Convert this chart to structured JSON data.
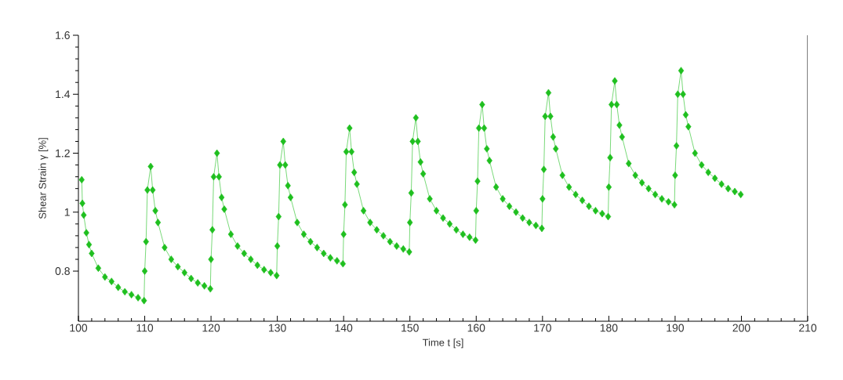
{
  "chart_data": {
    "type": "line",
    "xlabel": "Time t  [s]",
    "ylabel": "Shear Strain γ  [%]",
    "xlim": [
      100,
      210
    ],
    "ylim": [
      0.63,
      1.6
    ],
    "xticks": [
      100,
      110,
      120,
      130,
      140,
      150,
      160,
      170,
      180,
      190,
      200,
      210
    ],
    "yticks": [
      0.8,
      1,
      1.2,
      1.4,
      1.6
    ],
    "marker": "diamond",
    "line_style": "solid",
    "grid": false,
    "series": [
      {
        "color": "#1fbf1f",
        "x": [
          100.5,
          100.6,
          100.8,
          101.2,
          101.6,
          102,
          103,
          104,
          105,
          106,
          107,
          108,
          109,
          109.9,
          110,
          110.2,
          110.4,
          110.9,
          111.2,
          111.6,
          112,
          113,
          114,
          115,
          116,
          117,
          118,
          119,
          119.9,
          120,
          120.2,
          120.4,
          120.9,
          121.2,
          121.6,
          122,
          123,
          124,
          125,
          126,
          127,
          128,
          129,
          129.9,
          130,
          130.2,
          130.4,
          130.9,
          131.2,
          131.6,
          132,
          133,
          134,
          135,
          136,
          137,
          138,
          139,
          139.9,
          140,
          140.2,
          140.4,
          140.9,
          141.2,
          141.6,
          142,
          143,
          144,
          145,
          146,
          147,
          148,
          149,
          149.9,
          150,
          150.2,
          150.4,
          150.9,
          151.2,
          151.6,
          152,
          153,
          154,
          155,
          156,
          157,
          158,
          159,
          159.9,
          160,
          160.2,
          160.4,
          160.9,
          161.2,
          161.6,
          162,
          163,
          164,
          165,
          166,
          167,
          168,
          169,
          169.9,
          170,
          170.2,
          170.4,
          170.9,
          171.2,
          171.6,
          172,
          173,
          174,
          175,
          176,
          177,
          178,
          179,
          179.9,
          180,
          180.2,
          180.4,
          180.9,
          181.2,
          181.6,
          182,
          183,
          184,
          185,
          186,
          187,
          188,
          189,
          189.9,
          190,
          190.2,
          190.4,
          190.9,
          191.2,
          191.6,
          192,
          193,
          194,
          195,
          196,
          197,
          198,
          199,
          199.9
        ],
        "values": [
          1.11,
          1.03,
          0.99,
          0.93,
          0.89,
          0.86,
          0.81,
          0.78,
          0.765,
          0.745,
          0.73,
          0.72,
          0.71,
          0.7,
          0.8,
          0.9,
          1.075,
          1.155,
          1.075,
          1.005,
          0.965,
          0.88,
          0.84,
          0.815,
          0.795,
          0.775,
          0.76,
          0.75,
          0.74,
          0.84,
          0.94,
          1.12,
          1.2,
          1.12,
          1.05,
          1.01,
          0.925,
          0.885,
          0.86,
          0.84,
          0.82,
          0.805,
          0.795,
          0.785,
          0.885,
          0.985,
          1.16,
          1.24,
          1.16,
          1.09,
          1.05,
          0.965,
          0.925,
          0.9,
          0.88,
          0.86,
          0.845,
          0.835,
          0.825,
          0.925,
          1.025,
          1.205,
          1.285,
          1.205,
          1.135,
          1.095,
          1.005,
          0.965,
          0.94,
          0.92,
          0.9,
          0.885,
          0.875,
          0.865,
          0.965,
          1.065,
          1.24,
          1.32,
          1.24,
          1.17,
          1.13,
          1.045,
          1.005,
          0.98,
          0.96,
          0.94,
          0.925,
          0.915,
          0.905,
          1.005,
          1.105,
          1.285,
          1.365,
          1.285,
          1.215,
          1.175,
          1.085,
          1.045,
          1.02,
          1.0,
          0.98,
          0.965,
          0.955,
          0.945,
          1.045,
          1.145,
          1.325,
          1.405,
          1.325,
          1.255,
          1.215,
          1.125,
          1.085,
          1.06,
          1.04,
          1.02,
          1.005,
          0.995,
          0.985,
          1.085,
          1.185,
          1.365,
          1.445,
          1.365,
          1.295,
          1.255,
          1.165,
          1.125,
          1.1,
          1.08,
          1.06,
          1.045,
          1.035,
          1.025,
          1.125,
          1.225,
          1.4,
          1.48,
          1.4,
          1.33,
          1.29,
          1.2,
          1.16,
          1.135,
          1.115,
          1.095,
          1.08,
          1.07,
          1.06
        ]
      }
    ]
  }
}
